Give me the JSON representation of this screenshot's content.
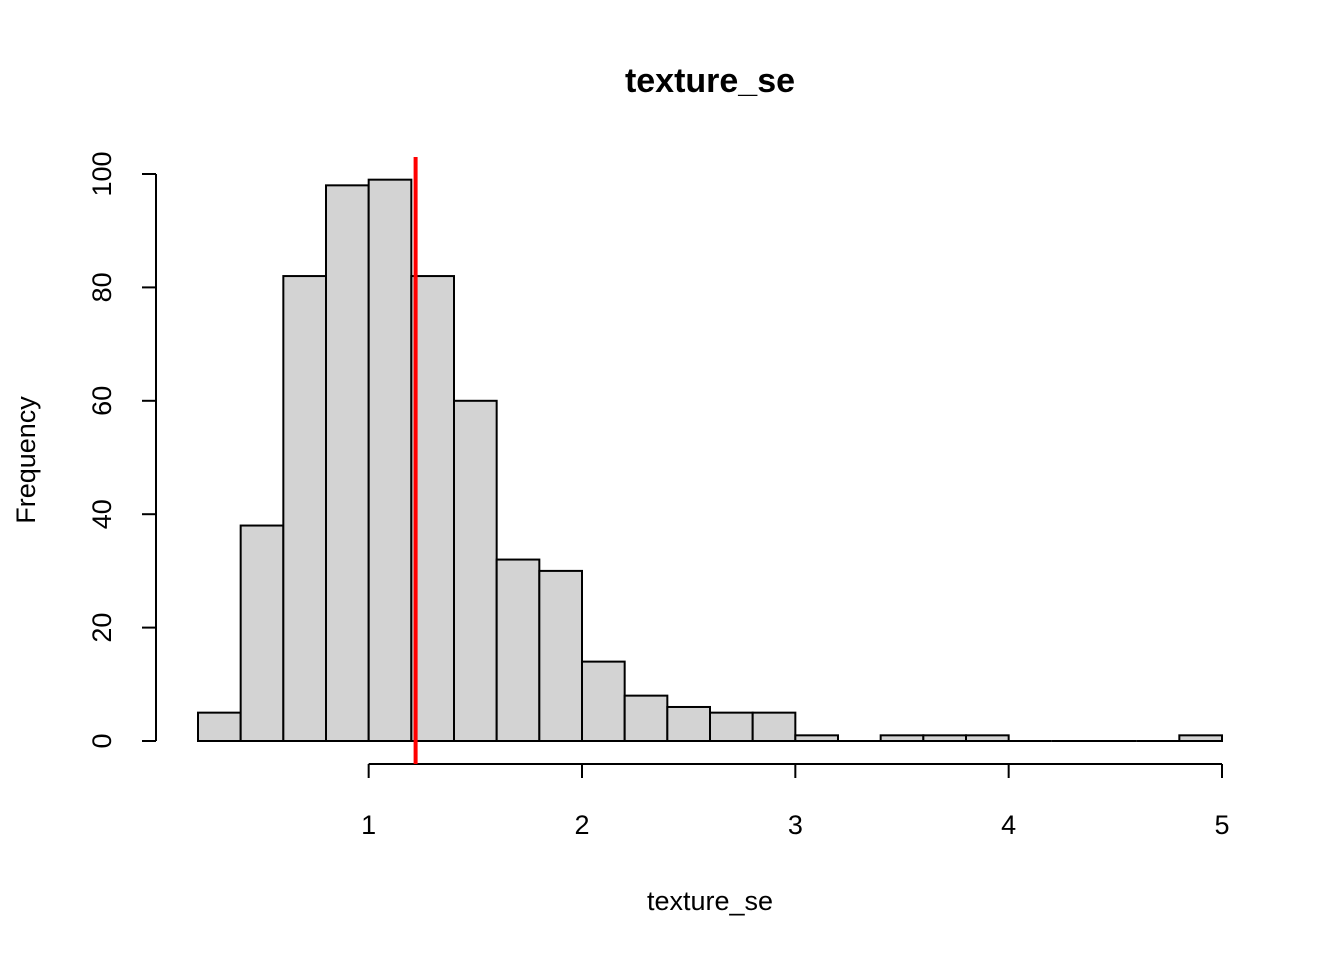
{
  "chart_data": {
    "type": "bar",
    "title": "texture_se",
    "xlabel": "texture_se",
    "ylabel": "Frequency",
    "bin_width": 0.2,
    "bin_starts": [
      0.2,
      0.4,
      0.6,
      0.8,
      1.0,
      1.2,
      1.4,
      1.6,
      1.8,
      2.0,
      2.2,
      2.4,
      2.6,
      2.8,
      3.0,
      3.2,
      3.4,
      3.6,
      3.8,
      4.0,
      4.2,
      4.4,
      4.6,
      4.8
    ],
    "values": [
      5,
      38,
      82,
      98,
      99,
      82,
      60,
      32,
      30,
      14,
      8,
      6,
      5,
      5,
      1,
      0,
      1,
      1,
      1,
      0,
      0,
      0,
      0,
      1
    ],
    "xlim": [
      0.2,
      5.0
    ],
    "ylim": [
      0,
      100
    ],
    "x_ticks": [
      1,
      2,
      3,
      4,
      5
    ],
    "y_ticks": [
      0,
      20,
      40,
      60,
      80,
      100
    ],
    "vline": {
      "x": 1.22,
      "color": "#ff0000"
    },
    "bar_color": "#d3d3d3",
    "grid": false,
    "legend": "none"
  }
}
